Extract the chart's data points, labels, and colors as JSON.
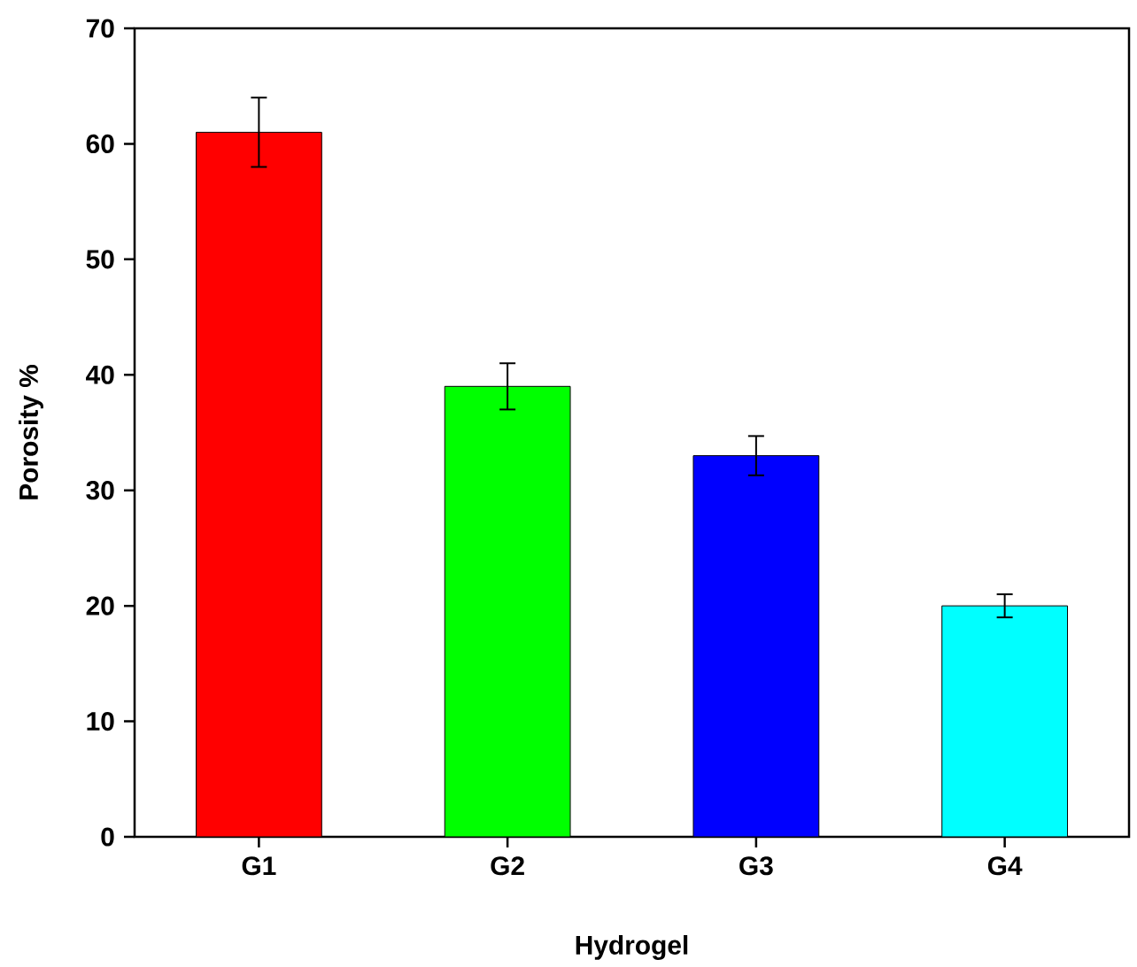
{
  "chart_data": {
    "type": "bar",
    "xlabel": "Hydrogel",
    "ylabel": "Porosity %",
    "categories": [
      "G1",
      "G2",
      "G3",
      "G4"
    ],
    "values": [
      61,
      39,
      33,
      20
    ],
    "errors": [
      3,
      2,
      1.7,
      1
    ],
    "colors": [
      "#ff0000",
      "#00ff00",
      "#0000ff",
      "#00ffff"
    ],
    "ylim": [
      0,
      70
    ],
    "yticks": [
      0,
      10,
      20,
      30,
      40,
      50,
      60,
      70
    ],
    "grid": false
  }
}
